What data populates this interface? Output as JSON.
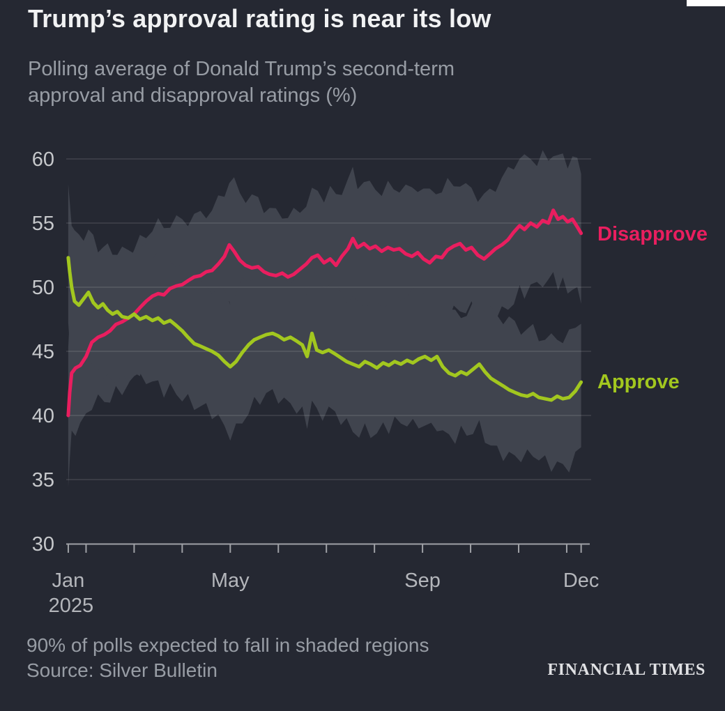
{
  "header": {
    "title": "Trump’s approval rating is near its low",
    "subtitle": "Polling average of Donald Trump’s second-term approval and disapproval ratings (%)"
  },
  "footer": {
    "note": "90% of polls expected to fall in shaded regions",
    "source": "Source: Silver Bulletin",
    "brand": "FINANCIAL TIMES"
  },
  "colors": {
    "background": "#252832",
    "band": "#40444e",
    "grid": "rgba(255,255,255,0.13)",
    "axis": "#9fa1a6",
    "y_tick_label": "#c6c8cb",
    "x_tick_label": "#b4b6bb",
    "disapprove": "#e91e5f",
    "approve": "#a2c71f"
  },
  "chart_data": {
    "type": "line",
    "title": "Trump’s approval rating is near its low",
    "subtitle": "Polling average of Donald Trump’s second-term approval and disapproval ratings (%)",
    "unit": "%",
    "ylim": [
      30,
      60
    ],
    "yticks": [
      30,
      35,
      40,
      45,
      50,
      55,
      60
    ],
    "band_note": "90% of polls expected to fall in shaded regions",
    "band_half_width": 5.0,
    "x_axis": {
      "year_label": "2025",
      "labels": [
        {
          "label": "Jan",
          "m": 0.63,
          "sub": "2025"
        },
        {
          "label": "May",
          "m": 4
        },
        {
          "label": "Sep",
          "m": 8
        },
        {
          "label": "Dec",
          "m": 11.3
        }
      ],
      "minor_ticks_m": [
        0.63,
        1,
        2,
        3,
        4,
        5,
        6,
        7,
        8,
        9,
        10,
        11,
        11.3
      ]
    },
    "series": [
      {
        "name": "Disapprove",
        "color": "#e91e5f",
        "points": [
          [
            0.63,
            40.0
          ],
          [
            0.66,
            41.8
          ],
          [
            0.7,
            43.3
          ],
          [
            0.78,
            43.7
          ],
          [
            0.88,
            43.9
          ],
          [
            1.0,
            44.6
          ],
          [
            1.12,
            45.7
          ],
          [
            1.25,
            46.1
          ],
          [
            1.38,
            46.3
          ],
          [
            1.5,
            46.6
          ],
          [
            1.62,
            47.1
          ],
          [
            1.75,
            47.3
          ],
          [
            1.88,
            47.6
          ],
          [
            2.0,
            47.9
          ],
          [
            2.12,
            48.4
          ],
          [
            2.25,
            48.9
          ],
          [
            2.38,
            49.3
          ],
          [
            2.5,
            49.5
          ],
          [
            2.62,
            49.4
          ],
          [
            2.75,
            49.9
          ],
          [
            2.88,
            50.1
          ],
          [
            3.0,
            50.2
          ],
          [
            3.12,
            50.5
          ],
          [
            3.25,
            50.8
          ],
          [
            3.38,
            50.9
          ],
          [
            3.5,
            51.2
          ],
          [
            3.62,
            51.3
          ],
          [
            3.75,
            51.8
          ],
          [
            3.88,
            52.4
          ],
          [
            3.98,
            53.3
          ],
          [
            4.08,
            52.8
          ],
          [
            4.2,
            52.1
          ],
          [
            4.32,
            51.7
          ],
          [
            4.45,
            51.5
          ],
          [
            4.58,
            51.6
          ],
          [
            4.7,
            51.2
          ],
          [
            4.82,
            51.0
          ],
          [
            4.95,
            50.9
          ],
          [
            5.08,
            51.1
          ],
          [
            5.2,
            50.8
          ],
          [
            5.32,
            51.0
          ],
          [
            5.45,
            51.4
          ],
          [
            5.58,
            51.8
          ],
          [
            5.7,
            52.3
          ],
          [
            5.82,
            52.5
          ],
          [
            5.95,
            51.9
          ],
          [
            6.08,
            52.2
          ],
          [
            6.2,
            51.7
          ],
          [
            6.32,
            52.4
          ],
          [
            6.45,
            53.0
          ],
          [
            6.55,
            53.8
          ],
          [
            6.65,
            53.1
          ],
          [
            6.78,
            53.4
          ],
          [
            6.9,
            53.0
          ],
          [
            7.02,
            53.2
          ],
          [
            7.15,
            52.8
          ],
          [
            7.28,
            53.1
          ],
          [
            7.4,
            52.9
          ],
          [
            7.52,
            53.0
          ],
          [
            7.65,
            52.6
          ],
          [
            7.78,
            52.4
          ],
          [
            7.9,
            52.7
          ],
          [
            8.02,
            52.2
          ],
          [
            8.15,
            51.9
          ],
          [
            8.28,
            52.4
          ],
          [
            8.4,
            52.3
          ],
          [
            8.52,
            52.9
          ],
          [
            8.65,
            53.2
          ],
          [
            8.78,
            53.4
          ],
          [
            8.9,
            52.9
          ],
          [
            9.02,
            53.1
          ],
          [
            9.15,
            52.5
          ],
          [
            9.28,
            52.2
          ],
          [
            9.4,
            52.6
          ],
          [
            9.52,
            53.0
          ],
          [
            9.65,
            53.3
          ],
          [
            9.78,
            53.7
          ],
          [
            9.9,
            54.3
          ],
          [
            10.02,
            54.8
          ],
          [
            10.12,
            54.5
          ],
          [
            10.25,
            55.0
          ],
          [
            10.38,
            54.7
          ],
          [
            10.5,
            55.2
          ],
          [
            10.62,
            55.0
          ],
          [
            10.72,
            56.0
          ],
          [
            10.82,
            55.3
          ],
          [
            10.92,
            55.5
          ],
          [
            11.02,
            55.1
          ],
          [
            11.12,
            55.3
          ],
          [
            11.22,
            54.7
          ],
          [
            11.3,
            54.2
          ]
        ]
      },
      {
        "name": "Approve",
        "color": "#a2c71f",
        "points": [
          [
            0.63,
            52.3
          ],
          [
            0.66,
            51.2
          ],
          [
            0.7,
            50.0
          ],
          [
            0.76,
            48.9
          ],
          [
            0.85,
            48.6
          ],
          [
            0.95,
            49.1
          ],
          [
            1.05,
            49.6
          ],
          [
            1.15,
            48.8
          ],
          [
            1.25,
            48.4
          ],
          [
            1.35,
            48.7
          ],
          [
            1.45,
            48.2
          ],
          [
            1.55,
            47.9
          ],
          [
            1.65,
            48.1
          ],
          [
            1.75,
            47.7
          ],
          [
            1.88,
            47.6
          ],
          [
            2.0,
            47.9
          ],
          [
            2.12,
            47.5
          ],
          [
            2.25,
            47.7
          ],
          [
            2.38,
            47.4
          ],
          [
            2.5,
            47.6
          ],
          [
            2.62,
            47.2
          ],
          [
            2.75,
            47.4
          ],
          [
            2.88,
            47.0
          ],
          [
            3.0,
            46.6
          ],
          [
            3.12,
            46.1
          ],
          [
            3.25,
            45.6
          ],
          [
            3.38,
            45.4
          ],
          [
            3.5,
            45.2
          ],
          [
            3.62,
            45.0
          ],
          [
            3.75,
            44.7
          ],
          [
            3.88,
            44.2
          ],
          [
            4.0,
            43.8
          ],
          [
            4.12,
            44.2
          ],
          [
            4.25,
            44.9
          ],
          [
            4.38,
            45.5
          ],
          [
            4.5,
            45.9
          ],
          [
            4.62,
            46.1
          ],
          [
            4.75,
            46.3
          ],
          [
            4.88,
            46.4
          ],
          [
            5.0,
            46.2
          ],
          [
            5.12,
            45.9
          ],
          [
            5.25,
            46.1
          ],
          [
            5.38,
            45.8
          ],
          [
            5.5,
            45.5
          ],
          [
            5.6,
            44.6
          ],
          [
            5.7,
            46.4
          ],
          [
            5.8,
            45.1
          ],
          [
            5.92,
            44.9
          ],
          [
            6.05,
            45.1
          ],
          [
            6.18,
            44.8
          ],
          [
            6.3,
            44.5
          ],
          [
            6.42,
            44.2
          ],
          [
            6.55,
            44.0
          ],
          [
            6.68,
            43.8
          ],
          [
            6.8,
            44.2
          ],
          [
            6.92,
            44.0
          ],
          [
            7.05,
            43.7
          ],
          [
            7.18,
            44.1
          ],
          [
            7.3,
            43.9
          ],
          [
            7.42,
            44.2
          ],
          [
            7.55,
            44.0
          ],
          [
            7.68,
            44.3
          ],
          [
            7.8,
            44.1
          ],
          [
            7.92,
            44.4
          ],
          [
            8.05,
            44.6
          ],
          [
            8.18,
            44.3
          ],
          [
            8.3,
            44.6
          ],
          [
            8.42,
            43.8
          ],
          [
            8.55,
            43.3
          ],
          [
            8.68,
            43.1
          ],
          [
            8.8,
            43.4
          ],
          [
            8.92,
            43.2
          ],
          [
            9.05,
            43.6
          ],
          [
            9.18,
            44.0
          ],
          [
            9.3,
            43.4
          ],
          [
            9.42,
            42.9
          ],
          [
            9.55,
            42.6
          ],
          [
            9.68,
            42.3
          ],
          [
            9.8,
            42.0
          ],
          [
            9.92,
            41.8
          ],
          [
            10.05,
            41.6
          ],
          [
            10.18,
            41.5
          ],
          [
            10.3,
            41.7
          ],
          [
            10.42,
            41.4
          ],
          [
            10.55,
            41.3
          ],
          [
            10.68,
            41.2
          ],
          [
            10.8,
            41.5
          ],
          [
            10.92,
            41.3
          ],
          [
            11.05,
            41.4
          ],
          [
            11.18,
            41.9
          ],
          [
            11.3,
            42.6
          ]
        ]
      }
    ]
  }
}
